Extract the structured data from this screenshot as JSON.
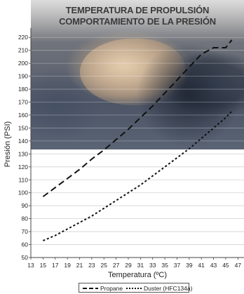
{
  "chart_data": {
    "type": "line",
    "title_lines": [
      "TEMPERATURA DE PROPULSIÓN",
      "COMPORTAMIENTO DE LA PRESIÓN"
    ],
    "xlabel": "Temperatura (ºC)",
    "ylabel": "Presión (PSI)",
    "xlim": [
      13,
      48
    ],
    "ylim": [
      50,
      225
    ],
    "xticks": [
      "13",
      "15",
      "17",
      "19",
      "21",
      "23",
      "25",
      "27",
      "29",
      "31",
      "33",
      "35",
      "37",
      "39",
      "41",
      "43",
      "45",
      "47"
    ],
    "yticks": [
      "50",
      "60",
      "70",
      "80",
      "90",
      "100",
      "110",
      "120",
      "130",
      "140",
      "150",
      "160",
      "170",
      "180",
      "190",
      "200",
      "210",
      "220"
    ],
    "grid": true,
    "legend_placement": "bottom",
    "series": [
      {
        "name": "Propane",
        "style": "dashed",
        "color": "#111111",
        "x": [
          15,
          17,
          19,
          21,
          23,
          25,
          27,
          29,
          31,
          33,
          35,
          37,
          39,
          41,
          43,
          45,
          46
        ],
        "y": [
          97,
          104,
          111,
          118,
          126,
          133,
          141,
          149,
          158,
          167,
          177,
          187,
          197,
          207,
          212,
          212,
          218
        ]
      },
      {
        "name": "Duster (HFC134a)",
        "style": "dotted",
        "color": "#111111",
        "x": [
          15,
          17,
          19,
          21,
          23,
          25,
          27,
          29,
          31,
          33,
          35,
          37,
          39,
          41,
          43,
          45,
          46
        ],
        "y": [
          63,
          67,
          72,
          77,
          82,
          88,
          94,
          100,
          106,
          113,
          120,
          127,
          134,
          142,
          150,
          158,
          163
        ]
      }
    ]
  }
}
